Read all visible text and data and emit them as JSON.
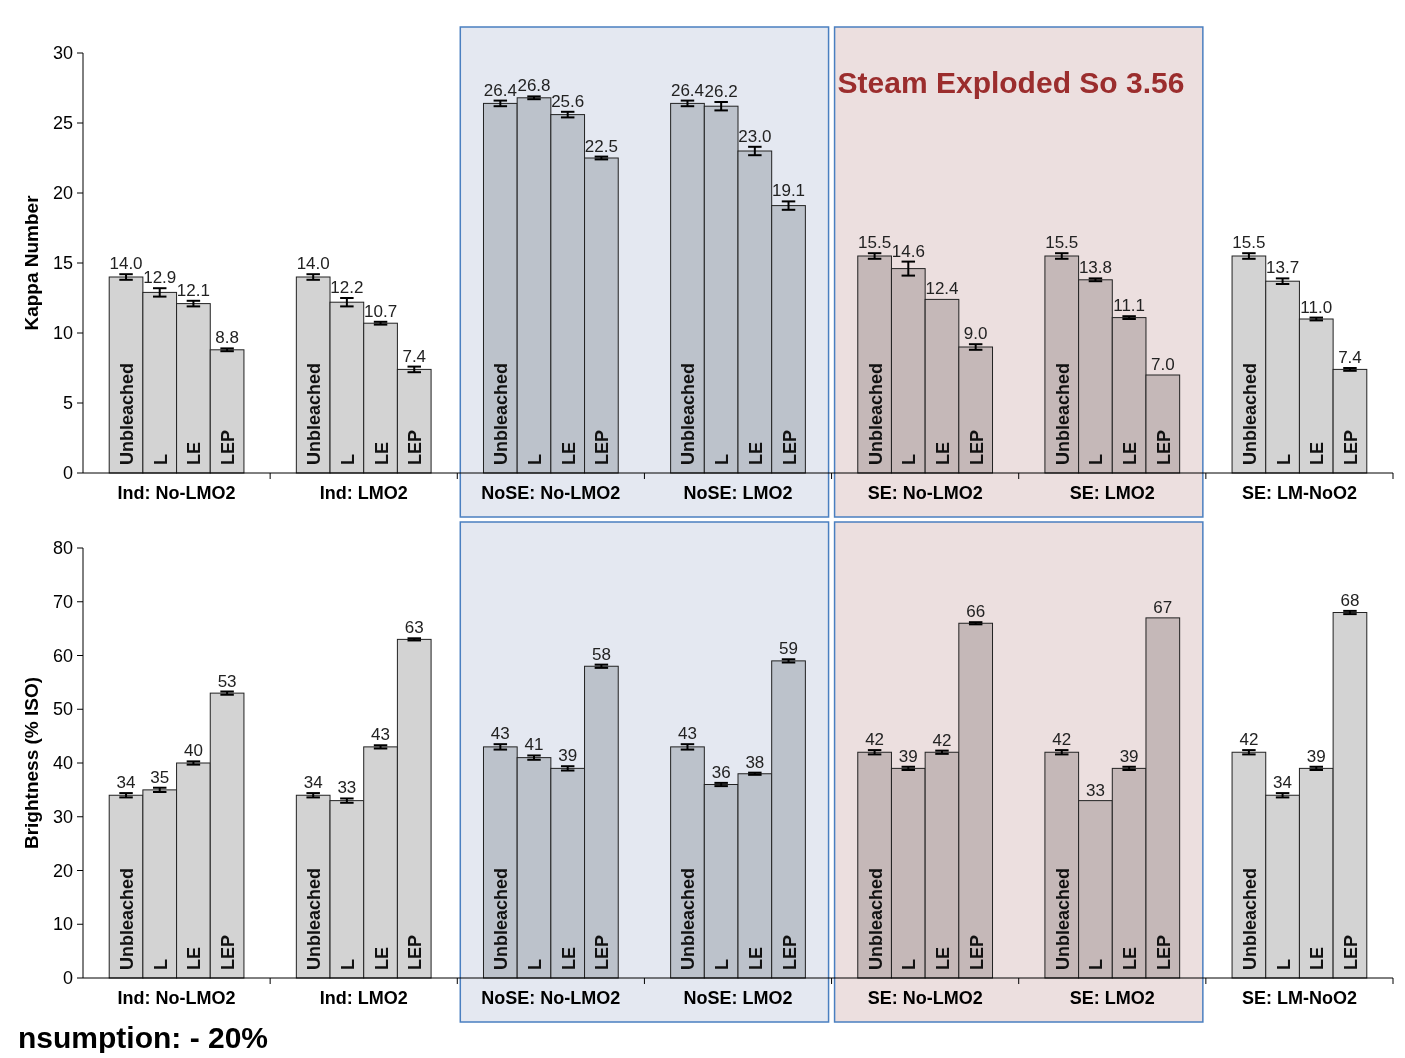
{
  "chart_data": [
    {
      "type": "bar",
      "ylabel": "Kappa Number",
      "ylim": [
        0,
        30
      ],
      "yticks": [
        0,
        5,
        10,
        15,
        20,
        25,
        30
      ],
      "categories": [
        "Ind: No-LMO2",
        "Ind: LMO2",
        "NoSE: No-LMO2",
        "NoSE: LMO2",
        "SE: No-LMO2",
        "SE: LMO2",
        "SE: LM-NoO2"
      ],
      "series": [
        {
          "name": "Unbleached",
          "colors": [
            "#d3d3d3",
            "#d3d3d3",
            "#bcc2cb",
            "#bcc2cb",
            "#c5b8b8",
            "#c5b8b8",
            "#d3d3d3"
          ],
          "values": [
            14.0,
            14.0,
            26.4,
            26.4,
            15.5,
            15.5,
            15.5
          ],
          "value_labels": [
            "14.0",
            "14.0",
            "26.4",
            "26.4",
            "15.5",
            "15.5",
            "15.5"
          ],
          "errors": [
            0.2,
            0.2,
            0.2,
            0.2,
            0.2,
            0.2,
            0.2
          ]
        },
        {
          "name": "L",
          "colors": [
            "#d3d3d3",
            "#d3d3d3",
            "#bcc2cb",
            "#bcc2cb",
            "#c5b8b8",
            "#c5b8b8",
            "#d3d3d3"
          ],
          "values": [
            12.9,
            12.2,
            26.8,
            26.2,
            14.6,
            13.8,
            13.7
          ],
          "value_labels": [
            "12.9",
            "12.2",
            "26.8",
            "26.2",
            "14.6",
            "13.8",
            "13.7"
          ],
          "errors": [
            0.3,
            0.3,
            0.1,
            0.3,
            0.5,
            0.1,
            0.2
          ]
        },
        {
          "name": "LE",
          "colors": [
            "#d3d3d3",
            "#d3d3d3",
            "#bcc2cb",
            "#bcc2cb",
            "#c5b8b8",
            "#c5b8b8",
            "#d3d3d3"
          ],
          "values": [
            12.1,
            10.7,
            25.6,
            23.0,
            12.4,
            11.1,
            11.0
          ],
          "value_labels": [
            "12.1",
            "10.7",
            "25.6",
            "23.0",
            "12.4",
            "11.1",
            "11.0"
          ],
          "errors": [
            0.2,
            0.1,
            0.2,
            0.3,
            null,
            0.1,
            0.1
          ]
        },
        {
          "name": "LEP",
          "colors": [
            "#d3d3d3",
            "#d3d3d3",
            "#bcc2cb",
            "#bcc2cb",
            "#c5b8b8",
            "#c5b8b8",
            "#d3d3d3"
          ],
          "values": [
            8.8,
            7.4,
            22.5,
            19.1,
            9.0,
            7.0,
            7.4
          ],
          "value_labels": [
            "8.8",
            "7.4",
            "22.5",
            "19.1",
            "9.0",
            "7.0",
            "7.4"
          ],
          "errors": [
            0.1,
            0.2,
            0.1,
            0.3,
            0.2,
            null,
            0.1
          ]
        }
      ],
      "bands": [
        {
          "axis": "x",
          "from": "NoSE: No-LMO2",
          "to": "NoSE: LMO2",
          "color": "#e4e8f1"
        },
        {
          "axis": "x",
          "from": "SE: No-LMO2",
          "to": "SE: LMO2",
          "color": "#ecdfdf",
          "label": "Steam Exploded  So 3.56"
        }
      ]
    },
    {
      "type": "bar",
      "ylabel": "Brightness (% ISO)",
      "ylim": [
        0,
        80
      ],
      "yticks": [
        0,
        10,
        20,
        30,
        40,
        50,
        60,
        70,
        80
      ],
      "data_labels": true,
      "categories": [
        "Ind: No-LMO2",
        "Ind: LMO2",
        "NoSE: No-LMO2",
        "NoSE: LMO2",
        "SE: No-LMO2",
        "SE: LMO2",
        "SE: LM-NoO2"
      ],
      "series": [
        {
          "name": "Unbleached",
          "colors": [
            "#d3d3d3",
            "#d3d3d3",
            "#bcc2cb",
            "#bcc2cb",
            "#c5b8b8",
            "#c5b8b8",
            "#d3d3d3"
          ],
          "values": [
            34,
            34,
            43,
            43,
            42,
            42,
            42
          ],
          "errors": [
            0.4,
            0.4,
            0.5,
            0.5,
            0.4,
            0.4,
            0.4
          ]
        },
        {
          "name": "L",
          "colors": [
            "#d3d3d3",
            "#d3d3d3",
            "#bcc2cb",
            "#bcc2cb",
            "#c5b8b8",
            "#c5b8b8",
            "#d3d3d3"
          ],
          "values": [
            35,
            33,
            41,
            36,
            39,
            33,
            34
          ],
          "errors": [
            0.4,
            0.4,
            0.4,
            0.3,
            0.3,
            null,
            0.4
          ]
        },
        {
          "name": "LE",
          "colors": [
            "#d3d3d3",
            "#d3d3d3",
            "#bcc2cb",
            "#bcc2cb",
            "#c5b8b8",
            "#c5b8b8",
            "#d3d3d3"
          ],
          "values": [
            40,
            43,
            39,
            38,
            42,
            39,
            39
          ],
          "errors": [
            0.3,
            0.3,
            0.4,
            0.2,
            0.3,
            0.3,
            0.3
          ]
        },
        {
          "name": "LEP",
          "colors": [
            "#d3d3d3",
            "#d3d3d3",
            "#bcc2cb",
            "#bcc2cb",
            "#c5b8b8",
            "#c5b8b8",
            "#d3d3d3"
          ],
          "values": [
            53,
            63,
            58,
            59,
            66,
            67,
            68
          ],
          "errors": [
            0.3,
            0.2,
            0.3,
            0.3,
            0.2,
            null,
            0.3
          ]
        }
      ],
      "bands": [
        {
          "axis": "x",
          "from": "NoSE: No-LMO2",
          "to": "NoSE: LMO2",
          "color": "#e4e8f1"
        },
        {
          "axis": "x",
          "from": "SE: No-LMO2",
          "to": "SE: LMO2",
          "color": "#ecdfdf"
        }
      ],
      "annotations": [
        "nsumption: - 20%"
      ]
    }
  ]
}
